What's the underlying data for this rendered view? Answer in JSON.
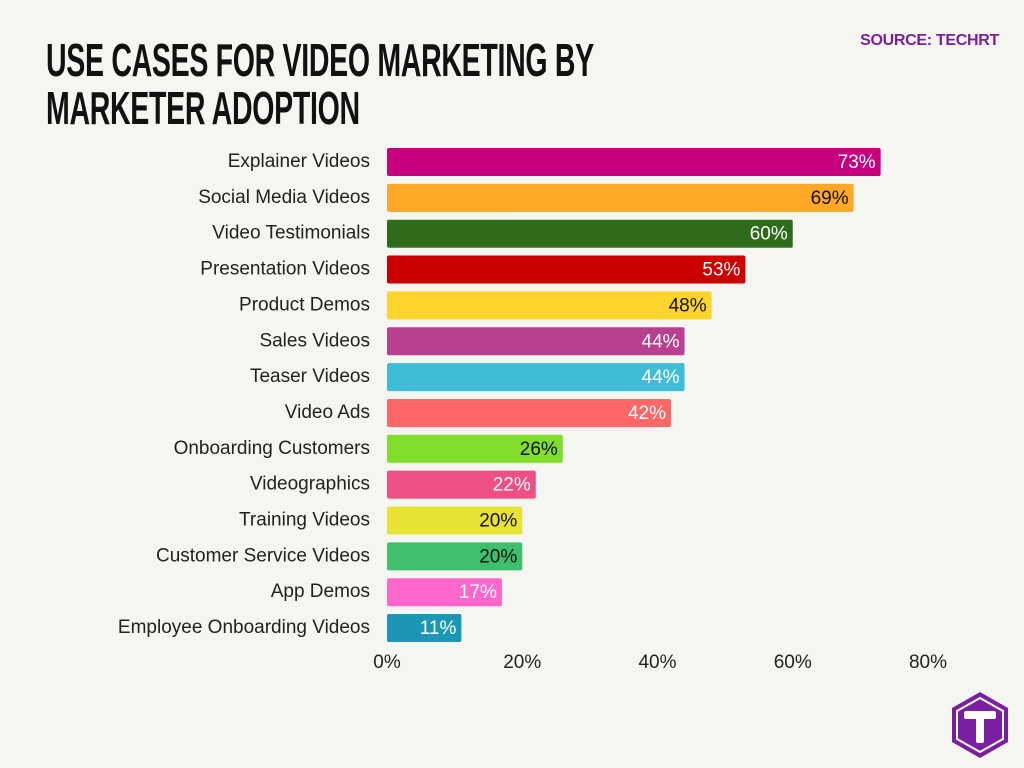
{
  "chart_data": {
    "type": "barh",
    "title": "USE CASES FOR VIDEO MARKETING BY MARKETER ADOPTION",
    "source": "SOURCE: TECHRT",
    "categories": [
      "Explainer Videos",
      "Social Media Videos",
      "Video Testimonials",
      "Presentation Videos",
      "Product Demos",
      "Sales Videos",
      "Teaser Videos",
      "Video Ads",
      "Onboarding Customers",
      "Videographics",
      "Training Videos",
      "Customer Service Videos",
      "App Demos",
      "Employee Onboarding Videos"
    ],
    "values": [
      73,
      69,
      60,
      53,
      48,
      44,
      44,
      42,
      26,
      22,
      20,
      20,
      17,
      11
    ],
    "value_labels": [
      "73%",
      "69%",
      "60%",
      "53%",
      "48%",
      "44%",
      "44%",
      "42%",
      "26%",
      "22%",
      "20%",
      "20%",
      "17%",
      "11%"
    ],
    "colors": [
      "#c8007e",
      "#ffa726",
      "#2e6b1a",
      "#cc0000",
      "#ffd42a",
      "#b8408f",
      "#3fbcd8",
      "#ff6666",
      "#80dd2a",
      "#ee4f84",
      "#e8e235",
      "#3ebf6b",
      "#ff66cc",
      "#1b96b4"
    ],
    "value_label_colors": [
      "#ffffff",
      "#111111",
      "#ffffff",
      "#ffffff",
      "#111111",
      "#ffffff",
      "#ffffff",
      "#ffffff",
      "#111111",
      "#ffffff",
      "#111111",
      "#111111",
      "#ffffff",
      "#ffffff"
    ],
    "xlim": [
      0,
      80
    ],
    "xticks": [
      {
        "value": 0,
        "label": "0%"
      },
      {
        "value": 20,
        "label": "20%"
      },
      {
        "value": 40,
        "label": "40%"
      },
      {
        "value": 60,
        "label": "60%"
      },
      {
        "value": 80,
        "label": "80%"
      }
    ],
    "grid": false
  }
}
